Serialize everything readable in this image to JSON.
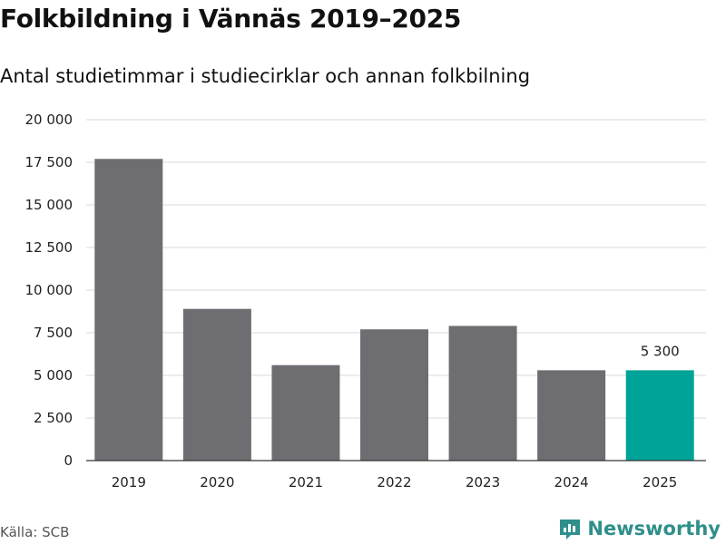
{
  "header": {
    "title": "Folkbildning i Vännäs 2019–2025",
    "subtitle": "Antal studietimmar i studiecirklar och annan folkbilning"
  },
  "footer": {
    "source": "Källa: SCB",
    "brand": "Newsworthy"
  },
  "colors": {
    "bar": "#6e6d72",
    "highlight": "#00a398",
    "grid": "#d9d9d9",
    "axis": "#333333",
    "brand": "#2f8f8a"
  },
  "chart_data": {
    "type": "bar",
    "title": "Folkbildning i Vännäs 2019–2025",
    "subtitle": "Antal studietimmar i studiecirklar och annan folkbilning",
    "xlabel": "",
    "ylabel": "",
    "categories": [
      "2019",
      "2020",
      "2021",
      "2022",
      "2023",
      "2024",
      "2025"
    ],
    "values": [
      17700,
      8900,
      5600,
      7700,
      7900,
      5300,
      5300
    ],
    "highlight_index": 6,
    "data_labels": [
      {
        "index": 6,
        "text": "5 300"
      }
    ],
    "ylim": [
      0,
      20000
    ],
    "yticks": [
      0,
      2500,
      5000,
      7500,
      10000,
      12500,
      15000,
      17500,
      20000
    ],
    "ytick_labels": [
      "0",
      "2 500",
      "5 000",
      "7 500",
      "10 000",
      "12 500",
      "15 000",
      "17 500",
      "20 000"
    ],
    "grid": true,
    "legend": "none"
  }
}
